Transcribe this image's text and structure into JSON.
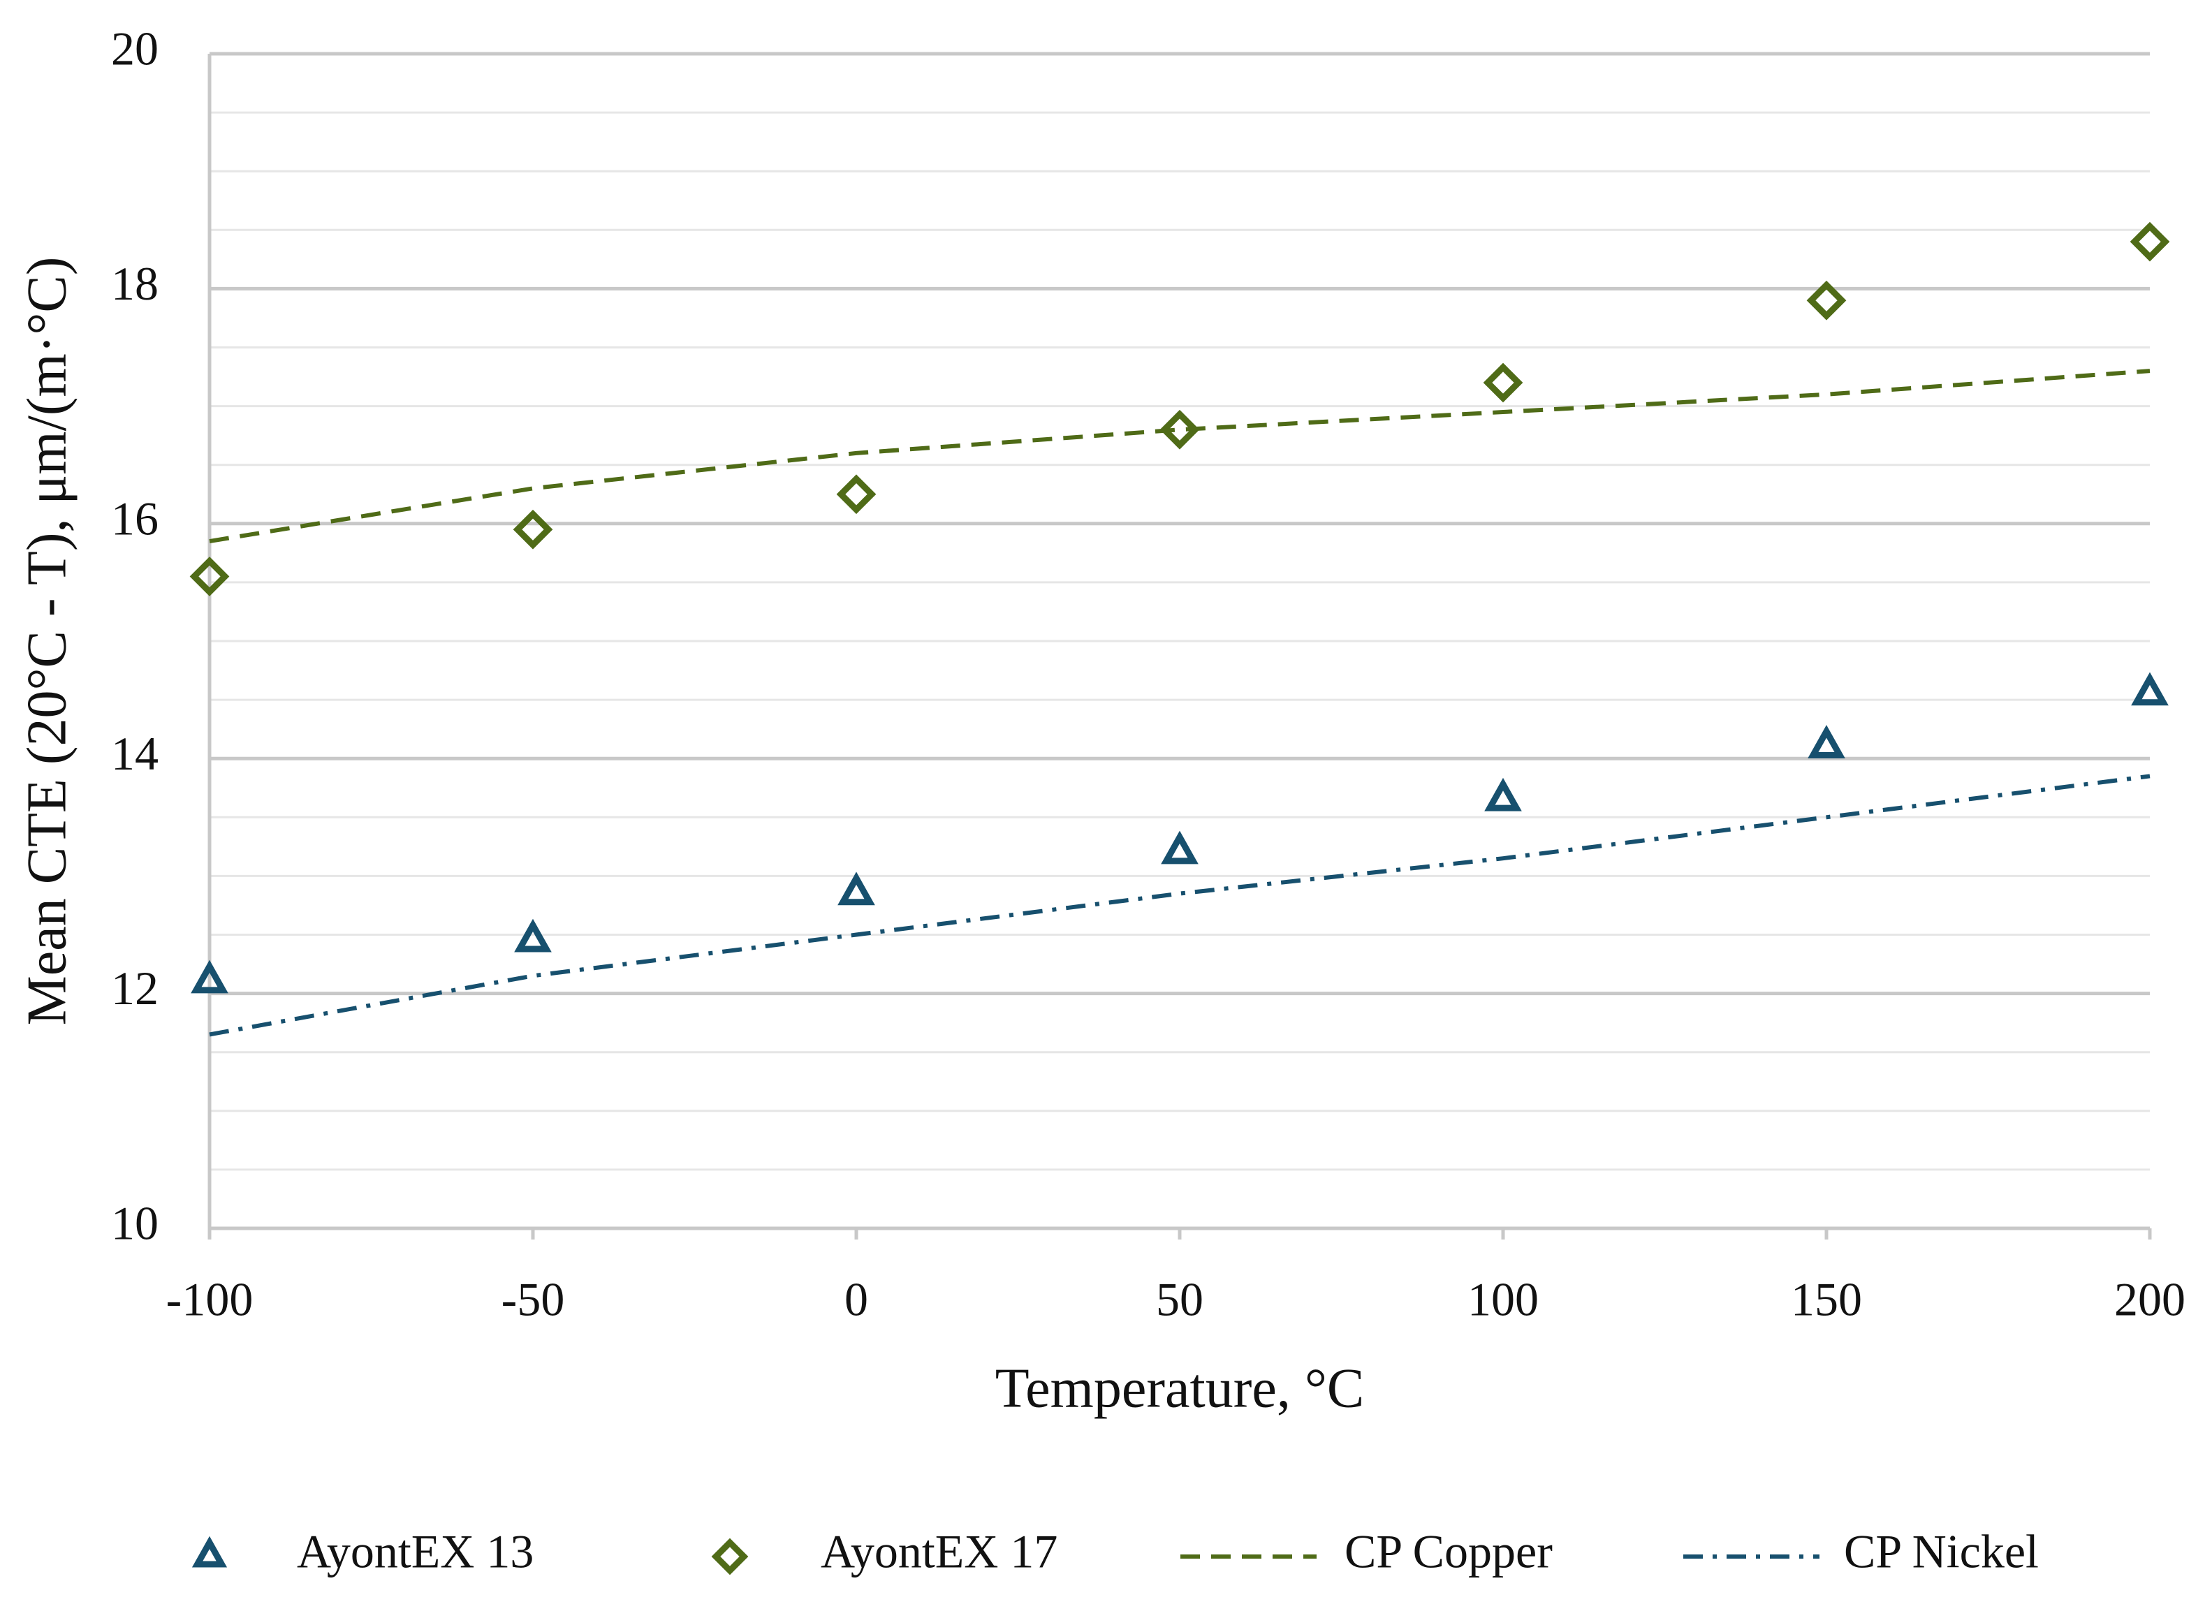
{
  "chart_data": {
    "type": "scatter",
    "x_label": "Temperature, °C",
    "y_label": "Mean CTE (20°C - T), μm/(m·°C)",
    "x": [
      -100,
      -50,
      0,
      50,
      100,
      150,
      200
    ],
    "series": [
      {
        "name": "AyontEX 13",
        "color": "#17506e",
        "marker": "triangle",
        "values": [
          12.1,
          12.45,
          12.85,
          13.2,
          13.65,
          14.1,
          14.55
        ]
      },
      {
        "name": "AyontEX 17",
        "color": "#4f6b17",
        "marker": "diamond",
        "values": [
          15.55,
          15.95,
          16.25,
          16.8,
          17.2,
          17.9,
          18.4
        ]
      },
      {
        "name": "CP Copper",
        "color": "#4f6b17",
        "line": "dashed",
        "values": [
          15.85,
          16.3,
          16.6,
          16.8,
          16.95,
          17.1,
          17.3
        ]
      },
      {
        "name": "CP Nickel",
        "color": "#17506e",
        "line": "dashdot",
        "values": [
          11.65,
          12.15,
          12.5,
          12.85,
          13.15,
          13.5,
          13.85
        ]
      }
    ],
    "xlim": [
      -100,
      200
    ],
    "xticks": [
      -100,
      -50,
      0,
      50,
      100,
      150,
      200
    ],
    "ylim": [
      10,
      20
    ],
    "yticks": [
      10,
      12,
      14,
      16,
      18,
      20
    ],
    "minor_yticks": [
      10.5,
      11,
      11.5,
      12.5,
      13,
      13.5,
      14.5,
      15,
      15.5,
      16.5,
      17,
      17.5,
      18.5,
      19,
      19.5
    ],
    "grid": true,
    "legend": "bottom"
  }
}
